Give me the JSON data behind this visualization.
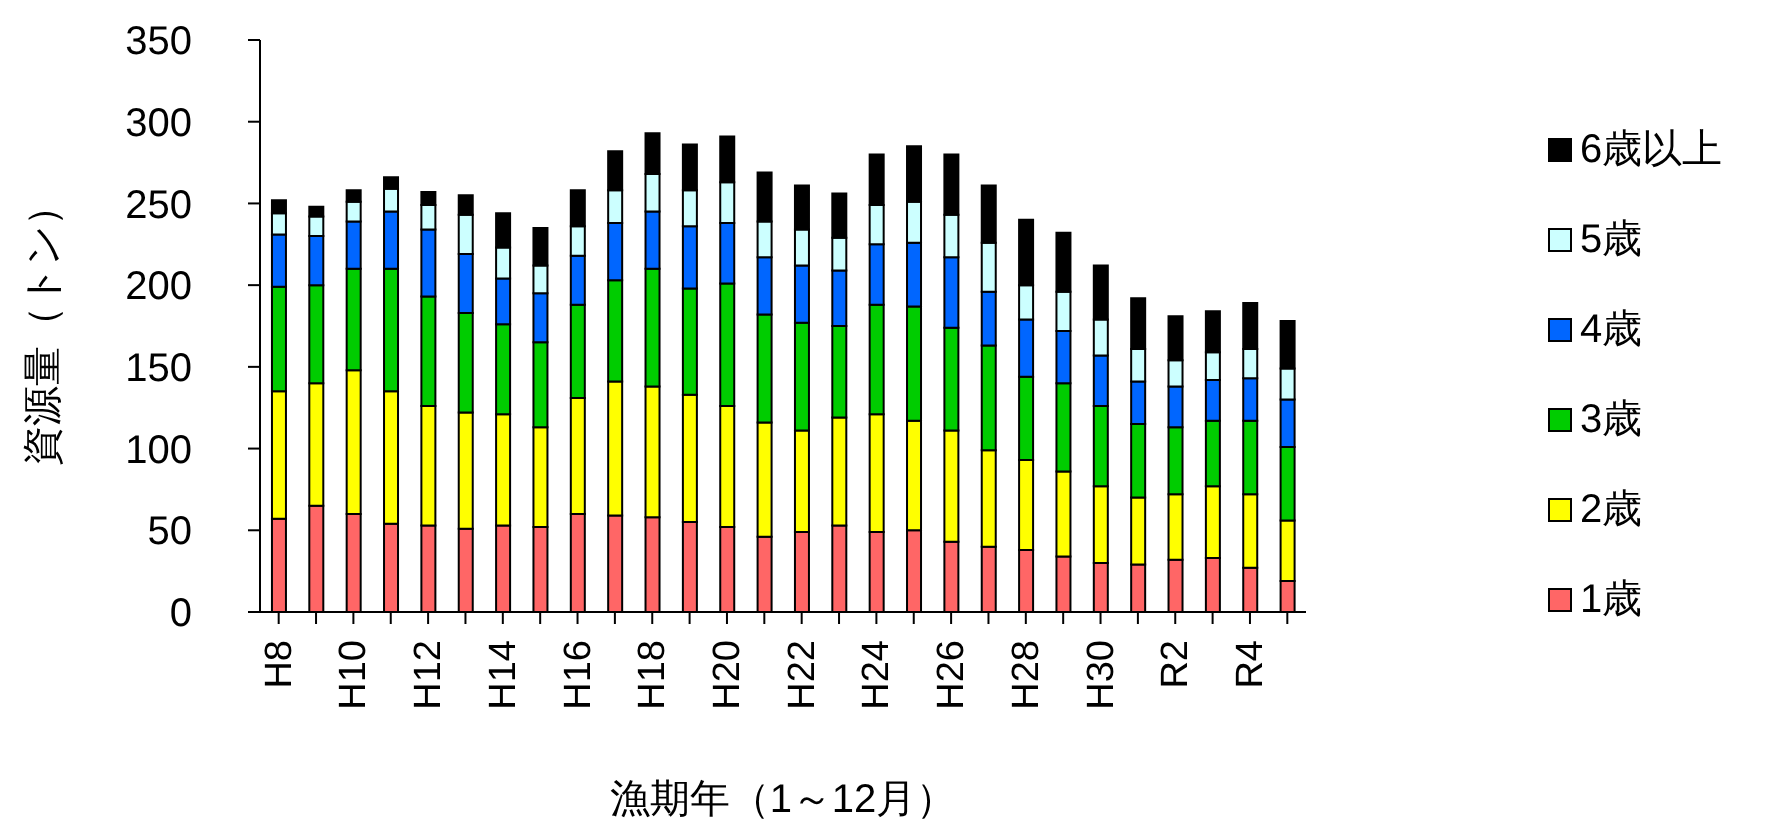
{
  "chart_data": {
    "type": "bar",
    "stacked": true,
    "xlabel": "漁期年（1～12月）",
    "ylabel": "資源量（トン）",
    "categories": [
      "H8",
      null,
      "H10",
      null,
      "H12",
      null,
      "H14",
      null,
      "H16",
      null,
      "H18",
      null,
      "H20",
      null,
      "H22",
      null,
      "H24",
      null,
      "H26",
      null,
      "H28",
      null,
      "H30",
      null,
      "R2",
      null,
      "R4",
      null
    ],
    "series": [
      {
        "name": "1歳",
        "color": "#ff6666",
        "values": [
          57,
          65,
          60,
          54,
          53,
          51,
          53,
          52,
          60,
          59,
          58,
          55,
          52,
          46,
          49,
          53,
          49,
          50,
          43,
          40,
          38,
          34,
          30,
          29,
          32,
          33,
          27,
          19
        ]
      },
      {
        "name": "2歳",
        "color": "#ffff00",
        "values": [
          78,
          75,
          88,
          81,
          73,
          71,
          68,
          61,
          71,
          82,
          80,
          78,
          74,
          70,
          62,
          66,
          72,
          67,
          68,
          59,
          55,
          52,
          47,
          41,
          40,
          44,
          45,
          37
        ]
      },
      {
        "name": "3歳",
        "color": "#00cc00",
        "values": [
          64,
          60,
          62,
          75,
          67,
          61,
          55,
          52,
          57,
          62,
          72,
          65,
          75,
          66,
          66,
          56,
          67,
          70,
          63,
          64,
          51,
          54,
          49,
          45,
          41,
          40,
          45,
          45
        ]
      },
      {
        "name": "4歳",
        "color": "#0066ff",
        "values": [
          32,
          30,
          29,
          35,
          41,
          36,
          28,
          30,
          30,
          35,
          35,
          38,
          37,
          35,
          35,
          34,
          37,
          39,
          43,
          33,
          35,
          32,
          31,
          26,
          25,
          25,
          26,
          29
        ]
      },
      {
        "name": "5歳",
        "color": "#ccffff",
        "values": [
          13,
          12,
          12,
          14,
          15,
          24,
          19,
          17,
          18,
          20,
          23,
          22,
          25,
          22,
          22,
          20,
          24,
          25,
          26,
          30,
          21,
          24,
          22,
          20,
          16,
          17,
          18,
          19
        ]
      },
      {
        "name": "6歳以上",
        "color": "#000000",
        "values": [
          8,
          6,
          7,
          7,
          8,
          12,
          21,
          23,
          22,
          24,
          25,
          28,
          28,
          30,
          27,
          27,
          31,
          34,
          37,
          35,
          40,
          36,
          33,
          31,
          27,
          25,
          28,
          29
        ]
      }
    ],
    "ylim": [
      0,
      350
    ],
    "yticks": [
      0,
      50,
      100,
      150,
      200,
      250,
      300,
      350
    ],
    "grid": false,
    "legend": "right"
  }
}
